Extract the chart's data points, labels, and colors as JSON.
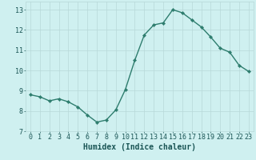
{
  "x": [
    0,
    1,
    2,
    3,
    4,
    5,
    6,
    7,
    8,
    9,
    10,
    11,
    12,
    13,
    14,
    15,
    16,
    17,
    18,
    19,
    20,
    21,
    22,
    23
  ],
  "y": [
    8.8,
    8.7,
    8.5,
    8.6,
    8.45,
    8.2,
    7.8,
    7.45,
    7.55,
    8.05,
    9.05,
    10.5,
    11.75,
    12.25,
    12.35,
    13.0,
    12.85,
    12.5,
    12.15,
    11.65,
    11.1,
    10.9,
    10.25,
    9.95
  ],
  "line_color": "#2e7d6e",
  "marker": "D",
  "marker_size": 2.2,
  "line_width": 1.0,
  "bg_color": "#cff0f0",
  "grid_color": "#b8d8d8",
  "xlabel": "Humidex (Indice chaleur)",
  "xlabel_fontsize": 7,
  "xlabel_color": "#1a5555",
  "tick_label_color": "#1a5555",
  "tick_fontsize": 6,
  "ylim": [
    7,
    13.4
  ],
  "yticks": [
    7,
    8,
    9,
    10,
    11,
    12,
    13
  ],
  "xlim": [
    -0.5,
    23.5
  ],
  "xticks": [
    0,
    1,
    2,
    3,
    4,
    5,
    6,
    7,
    8,
    9,
    10,
    11,
    12,
    13,
    14,
    15,
    16,
    17,
    18,
    19,
    20,
    21,
    22,
    23
  ]
}
